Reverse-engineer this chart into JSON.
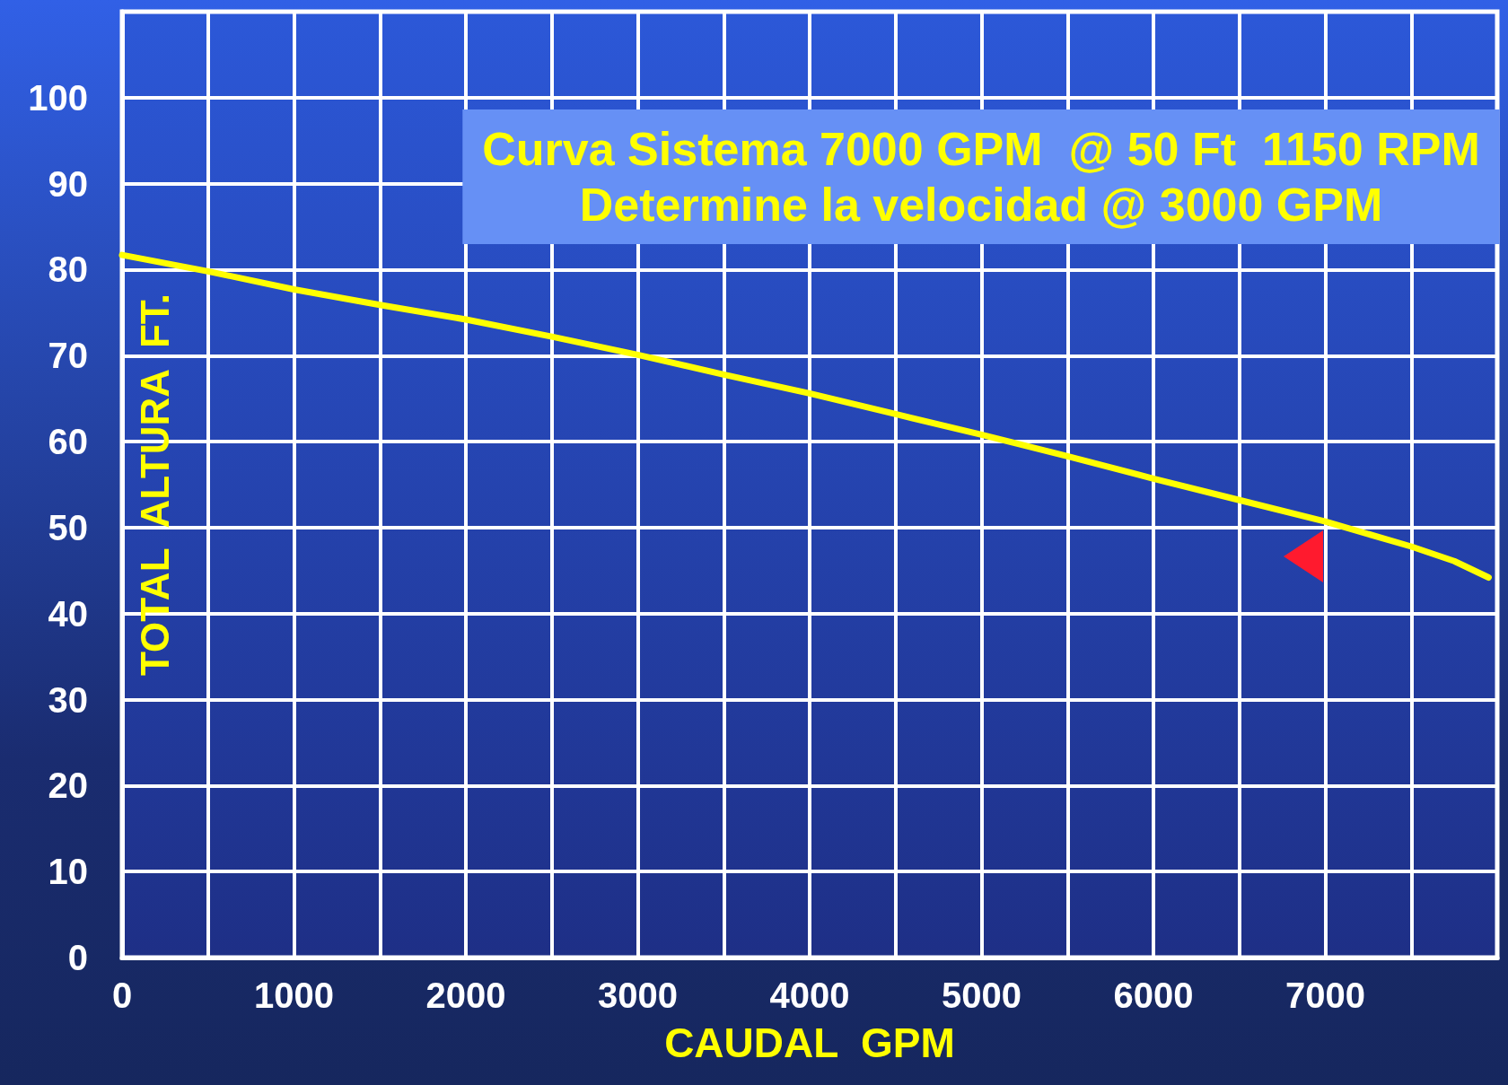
{
  "chart_data": {
    "type": "line",
    "title": "Curva Sistema 7000 GPM  @ 50 Ft  1150 RPM",
    "subtitle": "Determine la velocidad @ 3000 GPM",
    "xlabel": "CAUDAL  GPM",
    "ylabel": "TOTAL  ALTURA  FT.",
    "x": [
      0,
      500,
      1000,
      1500,
      2000,
      2500,
      3000,
      3500,
      4000,
      4500,
      5000,
      5500,
      6000,
      6500,
      7000,
      7500,
      7750,
      7950
    ],
    "series": [
      {
        "color": "#ffff00",
        "values": [
          81.7,
          79.8,
          77.7,
          75.9,
          74.2,
          72.2,
          70.1,
          67.8,
          65.6,
          63.2,
          60.8,
          58.3,
          55.7,
          53.2,
          50.7,
          47.8,
          46.1,
          44.2
        ]
      }
    ],
    "xlim": [
      0,
      8000
    ],
    "ylim": [
      0,
      110
    ],
    "xticks": [
      0,
      {
        "value": 500,
        "label": null
      },
      1000,
      {
        "value": 1500,
        "label": null
      },
      2000,
      {
        "value": 2500,
        "label": null
      },
      3000,
      {
        "value": 3500,
        "label": null
      },
      4000,
      {
        "value": 4500,
        "label": null
      },
      5000,
      {
        "value": 5500,
        "label": null
      },
      6000,
      {
        "value": 6500,
        "label": null
      },
      7000,
      {
        "value": 7500,
        "label": null
      }
    ],
    "yticks": [
      0,
      10,
      20,
      30,
      40,
      50,
      60,
      70,
      80,
      90,
      100
    ],
    "grid": true,
    "marker": "none",
    "line_style": "solid"
  }
}
